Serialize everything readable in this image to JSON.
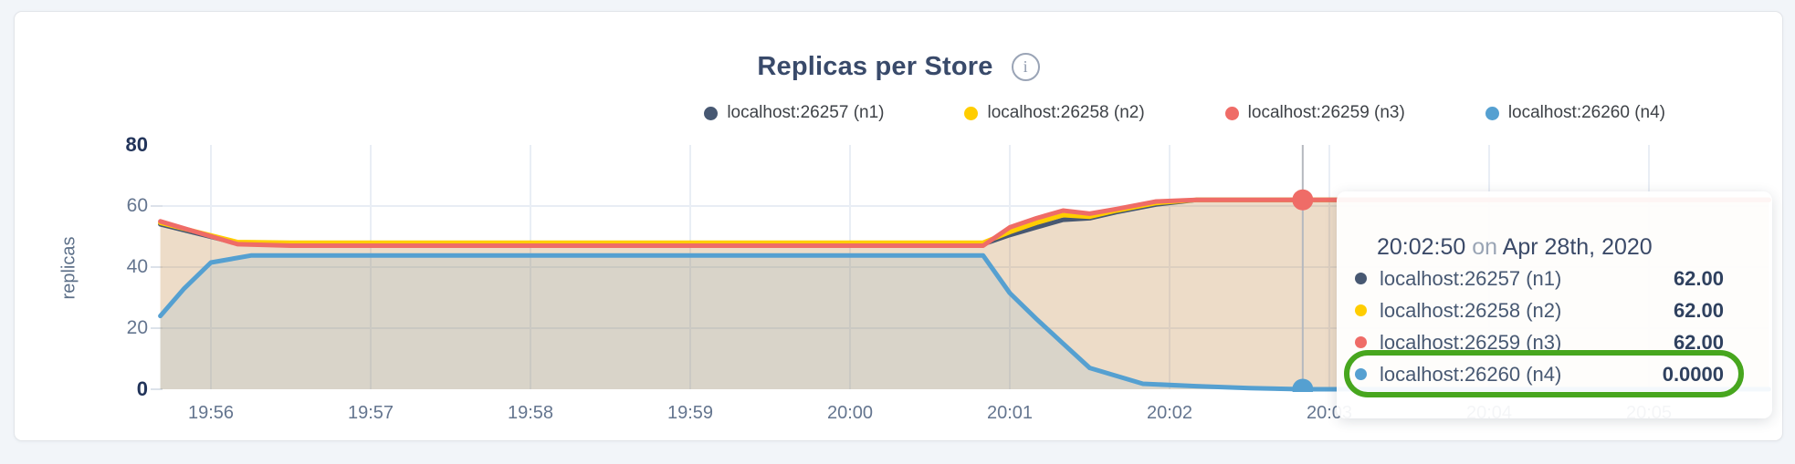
{
  "header": {
    "title": "Replicas per Store"
  },
  "legend": {
    "items": [
      {
        "label": "localhost:26257 (n1)",
        "color": "#475872"
      },
      {
        "label": "localhost:26258 (n2)",
        "color": "#ffcd00"
      },
      {
        "label": "localhost:26259 (n3)",
        "color": "#ef6c67"
      },
      {
        "label": "localhost:26260 (n4)",
        "color": "#55a0d1"
      }
    ]
  },
  "chart_data": {
    "type": "area",
    "title": "Replicas per Store",
    "ylabel": "replicas",
    "ylim": [
      0,
      80
    ],
    "yticks": [
      0,
      20,
      40,
      60,
      80
    ],
    "ytick_emphasis": [
      0,
      80
    ],
    "xticks": [
      "19:56",
      "19:57",
      "19:58",
      "19:59",
      "20:00",
      "20:01",
      "20:02",
      "20:03",
      "20:04",
      "20:05"
    ],
    "grid": true,
    "legend_position": "top-right",
    "series": [
      {
        "name": "localhost:26257 (n1)",
        "color": "#475872",
        "points": [
          [
            "19:55:41",
            54
          ],
          [
            "19:56:10",
            47.8
          ],
          [
            "19:56:30",
            47.5
          ],
          [
            "20:00:50",
            47.5
          ],
          [
            "20:01:00",
            50.5
          ],
          [
            "20:01:10",
            53
          ],
          [
            "20:01:20",
            55.5
          ],
          [
            "20:01:30",
            56
          ],
          [
            "20:01:40",
            58
          ],
          [
            "20:01:55",
            60.5
          ],
          [
            "20:02:10",
            62
          ],
          [
            "20:05:45",
            62
          ]
        ]
      },
      {
        "name": "localhost:26258 (n2)",
        "color": "#ffcd00",
        "points": [
          [
            "19:55:41",
            54.5
          ],
          [
            "19:56:10",
            48.2
          ],
          [
            "19:56:30",
            48
          ],
          [
            "20:00:50",
            48
          ],
          [
            "20:01:00",
            51.5
          ],
          [
            "20:01:10",
            54.5
          ],
          [
            "20:01:20",
            57
          ],
          [
            "20:01:30",
            56.5
          ],
          [
            "20:01:40",
            58.5
          ],
          [
            "20:01:55",
            61
          ],
          [
            "20:02:10",
            62
          ],
          [
            "20:05:45",
            62
          ]
        ]
      },
      {
        "name": "localhost:26259 (n3)",
        "color": "#ef6c67",
        "points": [
          [
            "19:55:41",
            55
          ],
          [
            "19:56:10",
            47.5
          ],
          [
            "19:56:30",
            47
          ],
          [
            "20:00:50",
            47
          ],
          [
            "20:01:00",
            53
          ],
          [
            "20:01:10",
            56
          ],
          [
            "20:01:20",
            58.5
          ],
          [
            "20:01:30",
            57.5
          ],
          [
            "20:01:40",
            59
          ],
          [
            "20:01:55",
            61.5
          ],
          [
            "20:02:10",
            62
          ],
          [
            "20:05:45",
            62
          ]
        ]
      },
      {
        "name": "localhost:26260 (n4)",
        "color": "#55a0d1",
        "points": [
          [
            "19:55:41",
            24
          ],
          [
            "19:55:50",
            33
          ],
          [
            "19:56:00",
            41.5
          ],
          [
            "19:56:15",
            43.8
          ],
          [
            "20:00:50",
            43.8
          ],
          [
            "20:01:00",
            31.5
          ],
          [
            "20:01:10",
            23
          ],
          [
            "20:01:20",
            15
          ],
          [
            "20:01:30",
            7
          ],
          [
            "20:01:50",
            1.8
          ],
          [
            "20:02:10",
            1
          ],
          [
            "20:02:30",
            0.4
          ],
          [
            "20:02:50",
            0
          ],
          [
            "20:05:45",
            0
          ]
        ]
      }
    ],
    "crosshair": {
      "time": "20:02:50",
      "dots": [
        {
          "series": 2,
          "value": 62
        },
        {
          "series": 3,
          "value": 0
        }
      ]
    }
  },
  "tooltip": {
    "time": "20:02:50",
    "conjunction": "on",
    "date": "Apr 28th, 2020",
    "rows": [
      {
        "label": "localhost:26257 (n1)",
        "value": "62.00",
        "color": "#475872",
        "highlighted": false
      },
      {
        "label": "localhost:26258 (n2)",
        "value": "62.00",
        "color": "#ffcd00",
        "highlighted": false
      },
      {
        "label": "localhost:26259 (n3)",
        "value": "62.00",
        "color": "#ef6c67",
        "highlighted": false
      },
      {
        "label": "localhost:26260 (n4)",
        "value": "0.0000",
        "color": "#55a0d1",
        "highlighted": true
      }
    ],
    "highlight_color": "#47a61e"
  }
}
